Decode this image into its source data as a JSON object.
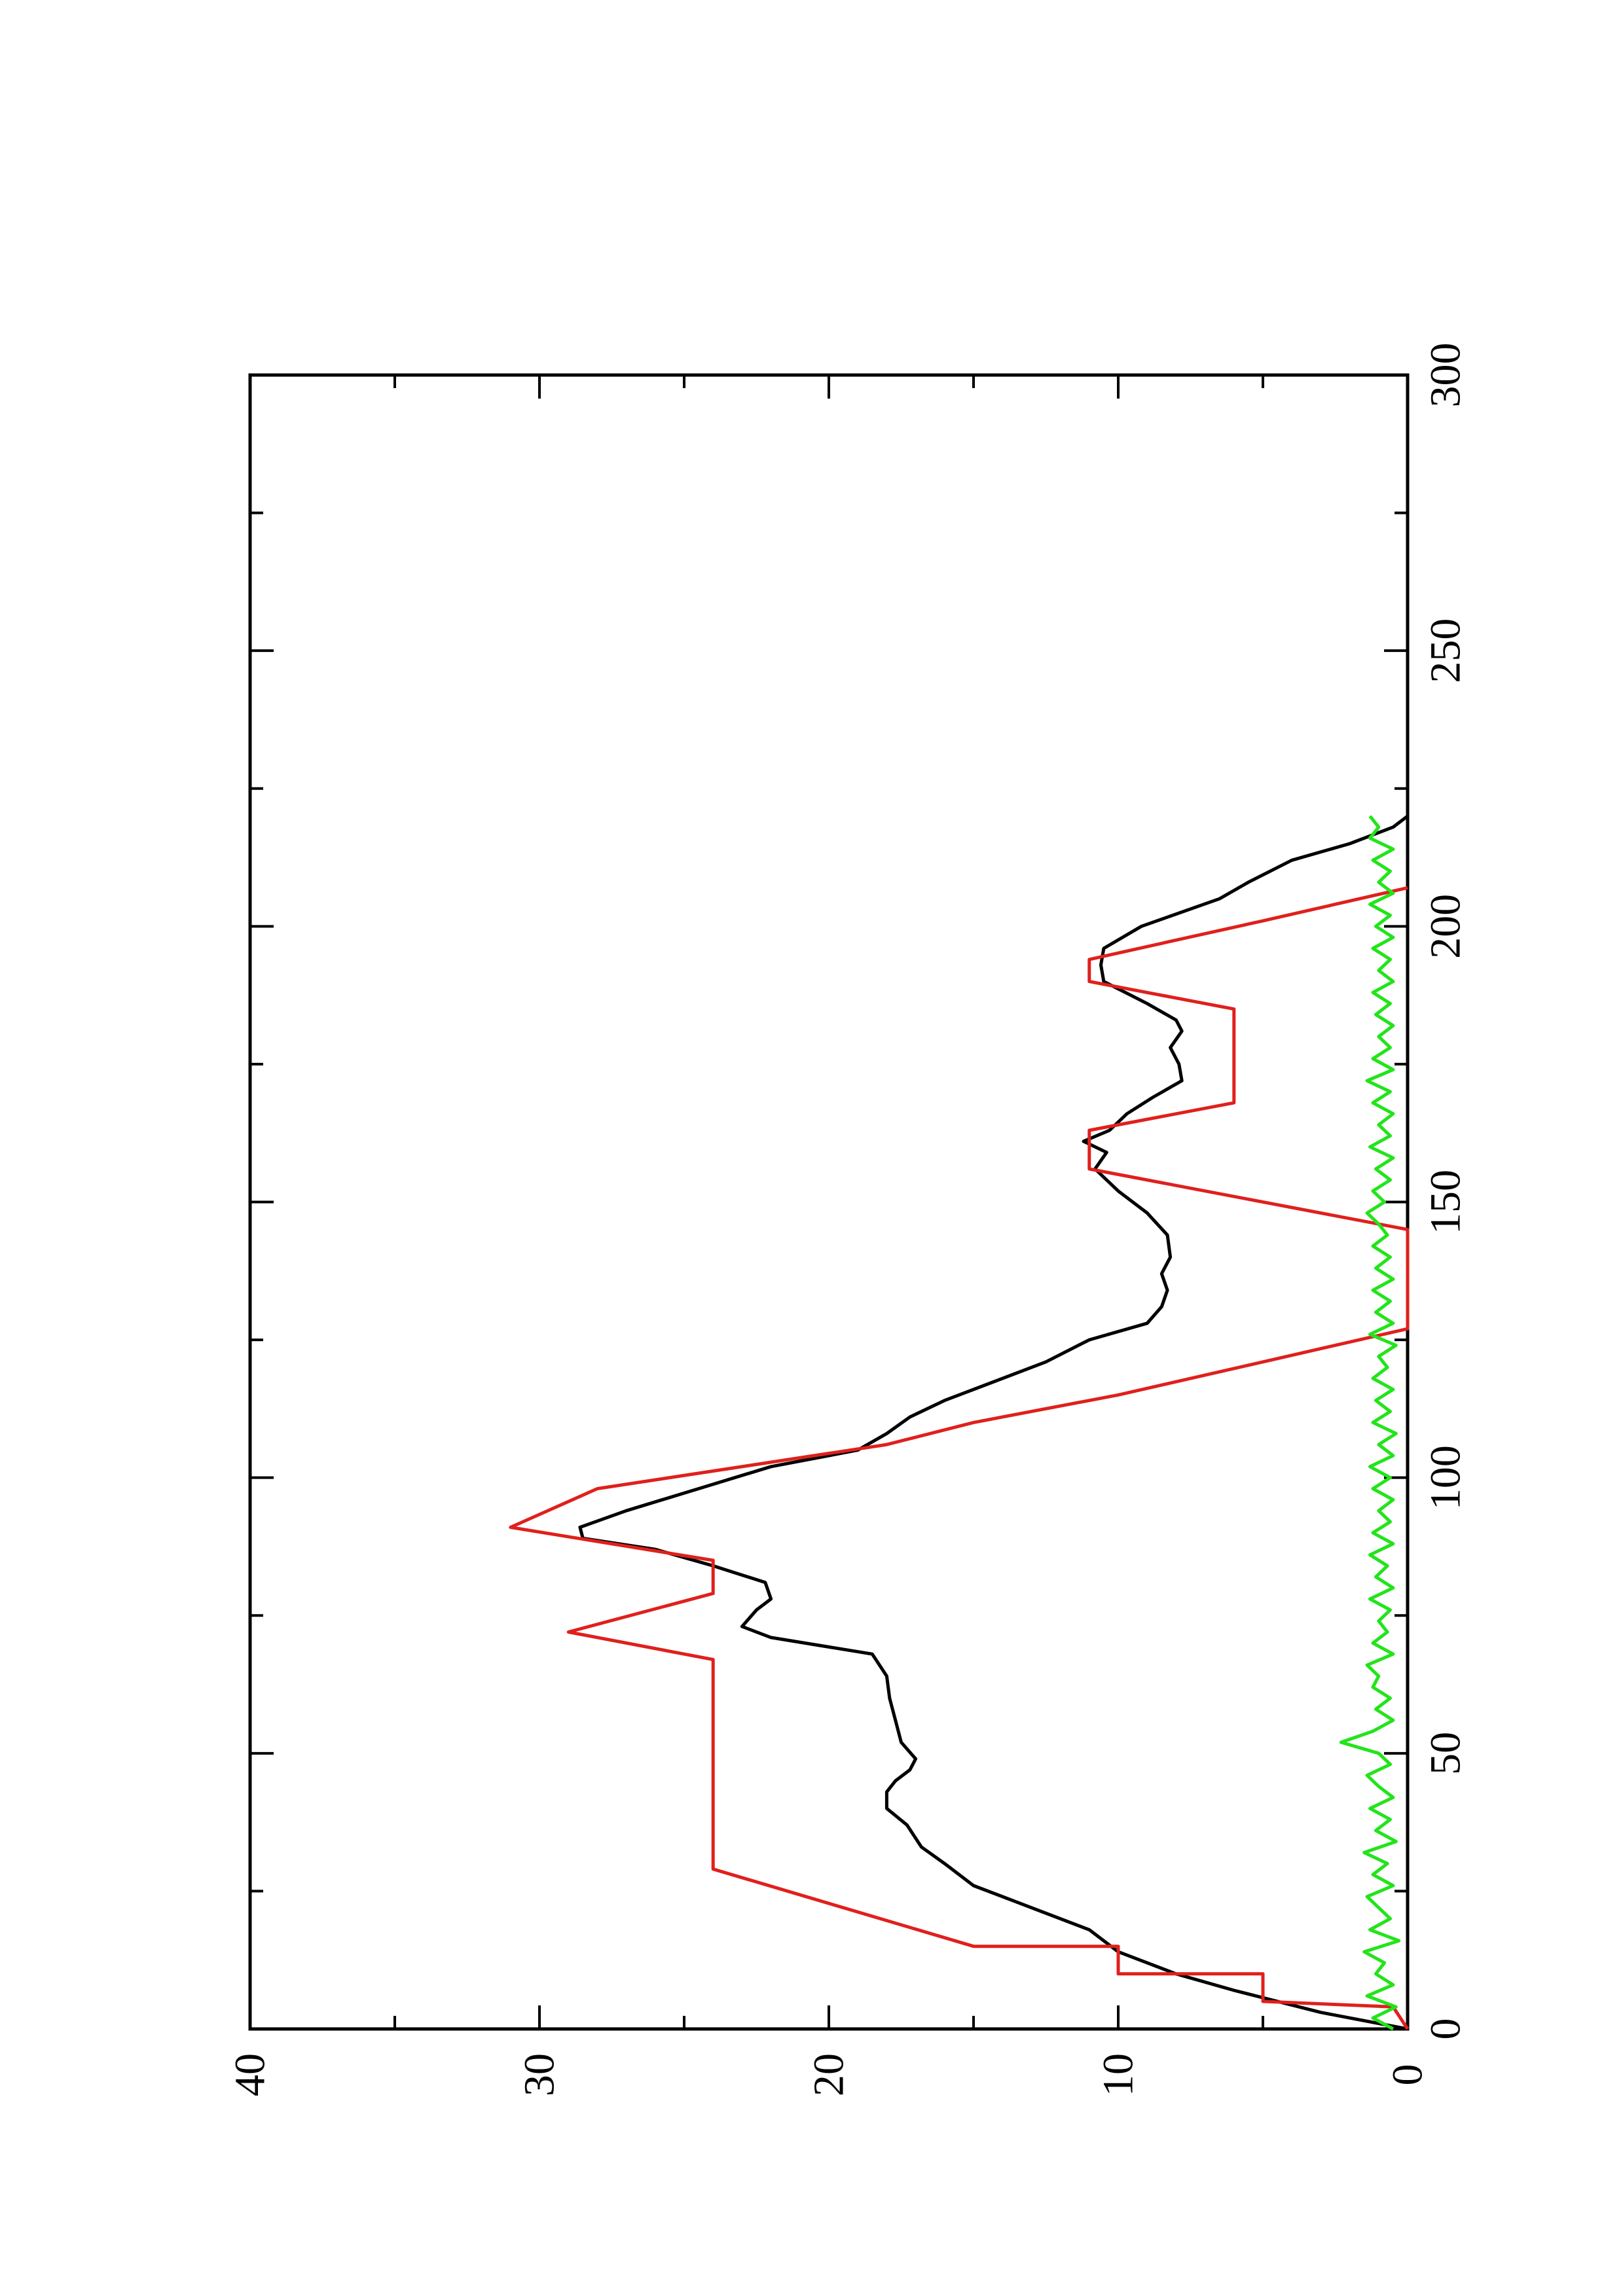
{
  "chart_data": {
    "type": "line",
    "orientation": "rotated-90-counterclockwise",
    "title": "",
    "xlabel": "",
    "ylabel": "",
    "xlim": [
      0,
      300
    ],
    "ylim": [
      0,
      40
    ],
    "x_ticks": [
      0,
      50,
      100,
      150,
      200,
      250,
      300
    ],
    "x_tick_labels": [
      "0",
      "50",
      "100",
      "150",
      "200",
      "250",
      "300"
    ],
    "x_minor_ticks": [
      25,
      75,
      125,
      175,
      225,
      275
    ],
    "y_ticks": [
      0,
      10,
      20,
      30,
      40
    ],
    "y_tick_labels": [
      "0",
      "10",
      "20",
      "30",
      "40"
    ],
    "y_minor_ticks": [
      5,
      15,
      25,
      35
    ],
    "grid": false,
    "legend": "none",
    "series": [
      {
        "color": "#000000",
        "points": [
          [
            0,
            0
          ],
          [
            3,
            3
          ],
          [
            7,
            6
          ],
          [
            10,
            8
          ],
          [
            14,
            10
          ],
          [
            18,
            11
          ],
          [
            22,
            13
          ],
          [
            26,
            15
          ],
          [
            30,
            16
          ],
          [
            33,
            16.8
          ],
          [
            37,
            17.3
          ],
          [
            40,
            18
          ],
          [
            43,
            18
          ],
          [
            45,
            17.7
          ],
          [
            47,
            17.2
          ],
          [
            49,
            17
          ],
          [
            52,
            17.5
          ],
          [
            56,
            17.7
          ],
          [
            60,
            17.9
          ],
          [
            64,
            18
          ],
          [
            68,
            18.5
          ],
          [
            71,
            22
          ],
          [
            73,
            23
          ],
          [
            76,
            22.5
          ],
          [
            78,
            22
          ],
          [
            81,
            22.2
          ],
          [
            84,
            24
          ],
          [
            87,
            26
          ],
          [
            89,
            28.5
          ],
          [
            91,
            28.6
          ],
          [
            94,
            27
          ],
          [
            98,
            24.5
          ],
          [
            102,
            22
          ],
          [
            105,
            19
          ],
          [
            108,
            18
          ],
          [
            111,
            17.2
          ],
          [
            114,
            16
          ],
          [
            117,
            14.5
          ],
          [
            121,
            12.5
          ],
          [
            125,
            11
          ],
          [
            128,
            9
          ],
          [
            131,
            8.5
          ],
          [
            134,
            8.3
          ],
          [
            137,
            8.5
          ],
          [
            140,
            8.2
          ],
          [
            144,
            8.3
          ],
          [
            148,
            9
          ],
          [
            152,
            10
          ],
          [
            156,
            10.8
          ],
          [
            159,
            10.4
          ],
          [
            161,
            11.2
          ],
          [
            163,
            10.3
          ],
          [
            166,
            9.7
          ],
          [
            169,
            8.8
          ],
          [
            172,
            7.8
          ],
          [
            175,
            7.9
          ],
          [
            178,
            8.2
          ],
          [
            181,
            7.8
          ],
          [
            183,
            8
          ],
          [
            186,
            9
          ],
          [
            190,
            10.5
          ],
          [
            193,
            10.6
          ],
          [
            196,
            10.5
          ],
          [
            200,
            9.2
          ],
          [
            205,
            6.5
          ],
          [
            208,
            5.5
          ],
          [
            212,
            4
          ],
          [
            215,
            2
          ],
          [
            218,
            0.5
          ],
          [
            220,
            0
          ]
        ]
      },
      {
        "color": "#e0201c",
        "points": [
          [
            0,
            0
          ],
          [
            4,
            0.5
          ],
          [
            5,
            5
          ],
          [
            10,
            5
          ],
          [
            10,
            10
          ],
          [
            15,
            10
          ],
          [
            15,
            15
          ],
          [
            29,
            24
          ],
          [
            67,
            24
          ],
          [
            72,
            29
          ],
          [
            79,
            24
          ],
          [
            85,
            24
          ],
          [
            91,
            31
          ],
          [
            98,
            28
          ],
          [
            106,
            18
          ],
          [
            110,
            15
          ],
          [
            115,
            10
          ],
          [
            121,
            5
          ],
          [
            127,
            0
          ],
          [
            145,
            0
          ],
          [
            156,
            11
          ],
          [
            163,
            11
          ],
          [
            168,
            6
          ],
          [
            185,
            6
          ],
          [
            190,
            11
          ],
          [
            194,
            11
          ],
          [
            201,
            5
          ],
          [
            207,
            0
          ]
        ]
      },
      {
        "color": "#22e41a",
        "points": [
          [
            0,
            0.5
          ],
          [
            2,
            1.2
          ],
          [
            4,
            0.4
          ],
          [
            6,
            1.4
          ],
          [
            8,
            0.5
          ],
          [
            10,
            1.1
          ],
          [
            12,
            0.8
          ],
          [
            14,
            1.5
          ],
          [
            16,
            0.3
          ],
          [
            18,
            1.3
          ],
          [
            20,
            0.6
          ],
          [
            22,
            1.0
          ],
          [
            24,
            1.4
          ],
          [
            26,
            0.5
          ],
          [
            28,
            1.2
          ],
          [
            30,
            0.7
          ],
          [
            32,
            1.5
          ],
          [
            34,
            0.4
          ],
          [
            36,
            1.1
          ],
          [
            38,
            0.6
          ],
          [
            40,
            1.3
          ],
          [
            42,
            0.5
          ],
          [
            44,
            1.0
          ],
          [
            46,
            1.4
          ],
          [
            48,
            0.6
          ],
          [
            50,
            1.0
          ],
          [
            52,
            2.3
          ],
          [
            54,
            1.2
          ],
          [
            56,
            0.5
          ],
          [
            58,
            1.1
          ],
          [
            60,
            0.6
          ],
          [
            62,
            1.2
          ],
          [
            64,
            1.0
          ],
          [
            66,
            1.4
          ],
          [
            68,
            0.5
          ],
          [
            70,
            1.2
          ],
          [
            72,
            0.7
          ],
          [
            74,
            1.0
          ],
          [
            76,
            0.6
          ],
          [
            78,
            1.3
          ],
          [
            80,
            0.5
          ],
          [
            82,
            1.1
          ],
          [
            84,
            0.7
          ],
          [
            86,
            1.3
          ],
          [
            88,
            0.5
          ],
          [
            90,
            1.2
          ],
          [
            92,
            0.6
          ],
          [
            94,
            1.0
          ],
          [
            96,
            0.5
          ],
          [
            98,
            1.2
          ],
          [
            100,
            0.6
          ],
          [
            102,
            1.3
          ],
          [
            104,
            0.5
          ],
          [
            106,
            1.0
          ],
          [
            108,
            0.4
          ],
          [
            110,
            1.2
          ],
          [
            112,
            0.6
          ],
          [
            114,
            1.1
          ],
          [
            116,
            0.5
          ],
          [
            118,
            1.2
          ],
          [
            120,
            0.7
          ],
          [
            122,
            1.0
          ],
          [
            124,
            0.4
          ],
          [
            126,
            1.3
          ],
          [
            128,
            0.5
          ],
          [
            130,
            1.1
          ],
          [
            132,
            0.6
          ],
          [
            134,
            1.2
          ],
          [
            136,
            0.5
          ],
          [
            138,
            1.1
          ],
          [
            140,
            0.6
          ],
          [
            142,
            1.2
          ],
          [
            144,
            0.7
          ],
          [
            146,
            1.0
          ],
          [
            148,
            1.4
          ],
          [
            150,
            0.8
          ],
          [
            152,
            1.2
          ],
          [
            154,
            0.6
          ],
          [
            156,
            1.1
          ],
          [
            158,
            0.5
          ],
          [
            160,
            1.3
          ],
          [
            162,
            0.6
          ],
          [
            164,
            1.0
          ],
          [
            166,
            0.5
          ],
          [
            168,
            1.2
          ],
          [
            170,
            0.6
          ],
          [
            172,
            1.4
          ],
          [
            174,
            0.5
          ],
          [
            176,
            1.2
          ],
          [
            178,
            0.6
          ],
          [
            180,
            1.0
          ],
          [
            182,
            0.5
          ],
          [
            184,
            1.1
          ],
          [
            186,
            0.6
          ],
          [
            188,
            1.2
          ],
          [
            190,
            0.5
          ],
          [
            192,
            1.0
          ],
          [
            194,
            0.6
          ],
          [
            196,
            1.2
          ],
          [
            198,
            0.5
          ],
          [
            200,
            1.1
          ],
          [
            202,
            0.6
          ],
          [
            204,
            1.3
          ],
          [
            206,
            0.5
          ],
          [
            208,
            1.0
          ],
          [
            210,
            0.6
          ],
          [
            212,
            1.2
          ],
          [
            214,
            0.5
          ],
          [
            216,
            1.3
          ],
          [
            218,
            1.0
          ],
          [
            220,
            1.3
          ]
        ]
      }
    ]
  }
}
